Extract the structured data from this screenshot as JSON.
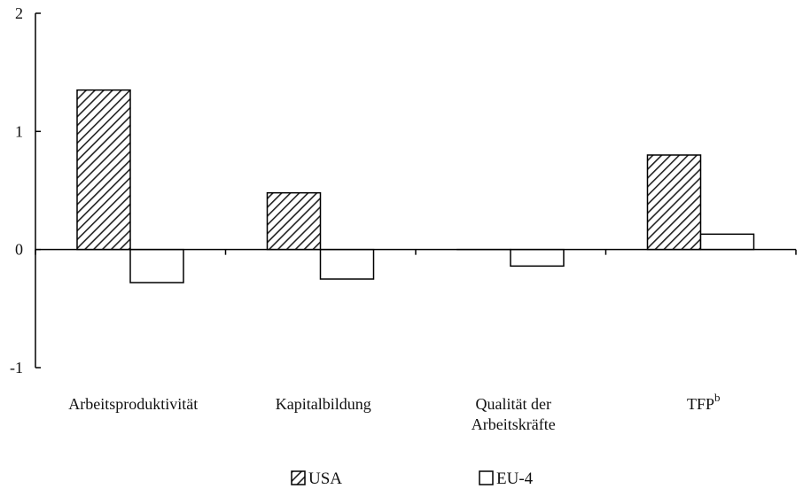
{
  "chart_data": {
    "type": "bar",
    "categories": [
      {
        "lines": [
          "Arbeitsproduktivität"
        ],
        "sup": ""
      },
      {
        "lines": [
          "Kapitalbildung"
        ],
        "sup": ""
      },
      {
        "lines": [
          "Qualität der",
          "Arbeitskräfte"
        ],
        "sup": ""
      },
      {
        "lines": [
          "TFP"
        ],
        "sup": "b"
      }
    ],
    "series": [
      {
        "name": "USA",
        "values": [
          1.35,
          0.48,
          0.0,
          0.8
        ],
        "pattern": "hatched"
      },
      {
        "name": "EU-4",
        "values": [
          -0.28,
          -0.25,
          -0.14,
          0.13
        ],
        "pattern": "empty"
      }
    ],
    "ylim": [
      -1,
      2
    ],
    "yticks": [
      {
        "value": 2,
        "label": "2"
      },
      {
        "value": 1,
        "label": "1"
      },
      {
        "value": 0,
        "label": "0"
      },
      {
        "value": -1,
        "label": "-1"
      }
    ],
    "legend_position": "bottom-center",
    "grid": false,
    "colors": {
      "stroke": "#000000",
      "hatch": "#222222",
      "fill_empty": "#ffffff"
    }
  }
}
